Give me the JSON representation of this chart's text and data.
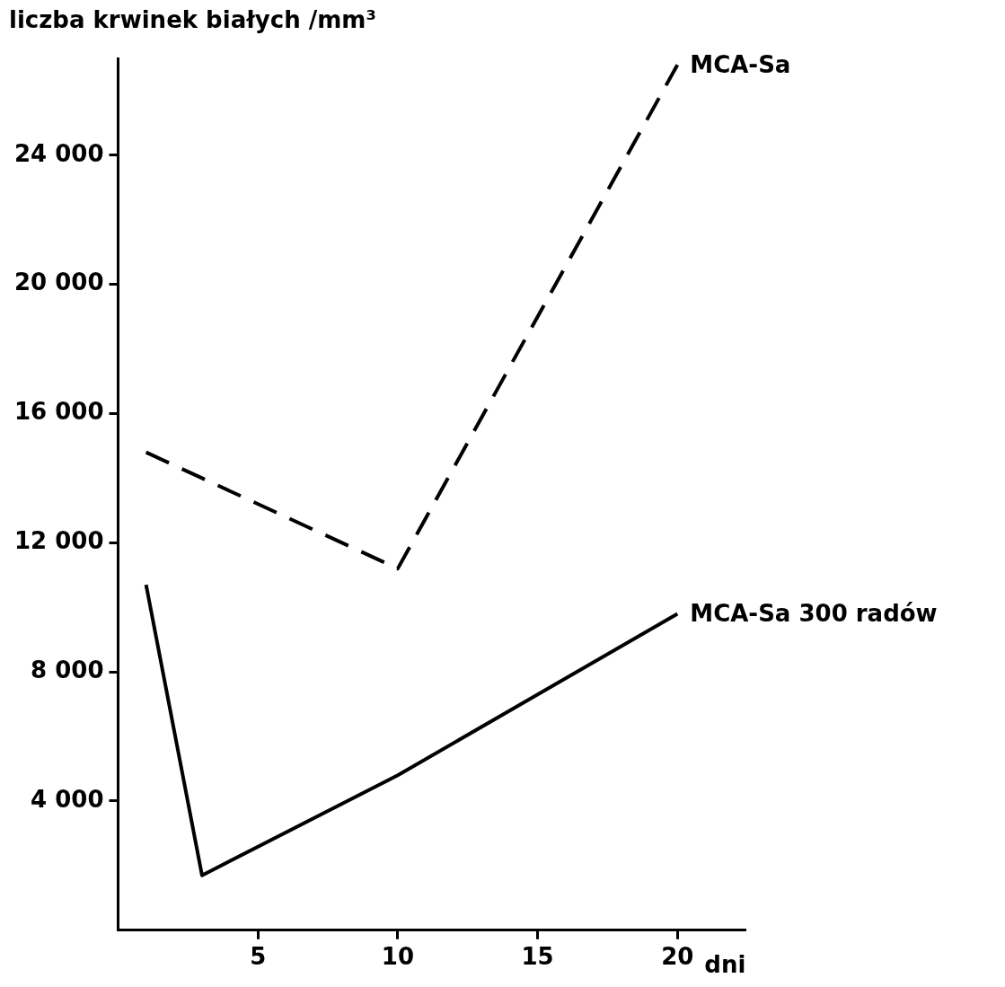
{
  "chart_data": {
    "type": "line",
    "ylabel": "liczba krwinek białych /mm³",
    "xlabel": "dni",
    "xlim": [
      0,
      22.4
    ],
    "xticks": [
      5,
      10,
      15,
      20
    ],
    "ylim": [
      0,
      27000
    ],
    "yticks": [
      {
        "value": 4000,
        "label": "4 000"
      },
      {
        "value": 8000,
        "label": "8 000"
      },
      {
        "value": 12000,
        "label": "12 000"
      },
      {
        "value": 16000,
        "label": "16 000"
      },
      {
        "value": 20000,
        "label": "20 000"
      },
      {
        "value": 24000,
        "label": "24 000"
      }
    ],
    "grid": false,
    "legend": false,
    "marker": "none",
    "series": [
      {
        "name": "MCA-Sa",
        "color": "#000000",
        "line_style": "dashed",
        "x": [
          1,
          3,
          10,
          20
        ],
        "values": [
          14800,
          14000,
          11200,
          26800
        ]
      },
      {
        "name": "MCA-Sa 300 radów",
        "color": "#000000",
        "line_style": "solid",
        "x": [
          1,
          3,
          10,
          20
        ],
        "values": [
          10700,
          1700,
          4800,
          9800
        ]
      }
    ]
  }
}
